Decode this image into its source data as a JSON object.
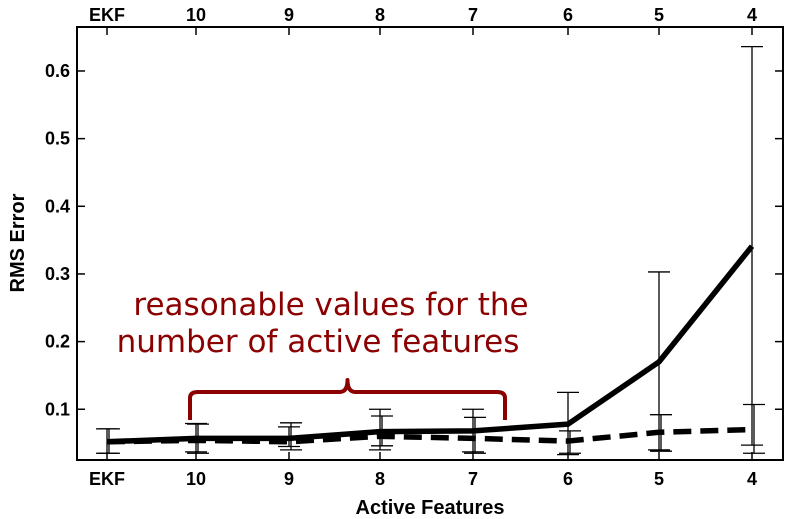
{
  "chart_data": {
    "type": "line",
    "title": "",
    "xlabel": "Active Features",
    "ylabel": "RMS Error",
    "categories": [
      "EKF",
      "10",
      "9",
      "8",
      "7",
      "6",
      "5",
      "4"
    ],
    "top_tick_labels": [
      "EKF",
      "10",
      "9",
      "8",
      "7",
      "6",
      "5",
      "4"
    ],
    "ylim": [
      0.025,
      0.665
    ],
    "yticks": [
      0.1,
      0.2,
      0.3,
      0.4,
      0.5,
      0.6
    ],
    "ytick_labels": [
      "0.1",
      "0.2",
      "0.3",
      "0.4",
      "0.5",
      "0.6"
    ],
    "grid": false,
    "series": [
      {
        "style": "solid",
        "values": [
          0.052,
          0.057,
          0.057,
          0.067,
          0.068,
          0.078,
          0.17,
          0.341
        ],
        "err_low": [
          0.035,
          0.037,
          0.045,
          0.04,
          0.037,
          0.033,
          0.04,
          0.047
        ],
        "err_high": [
          0.071,
          0.079,
          0.074,
          0.1,
          0.1,
          0.125,
          0.303,
          0.636
        ]
      },
      {
        "style": "dashed",
        "values": [
          0.052,
          0.054,
          0.052,
          0.06,
          0.057,
          0.053,
          0.066,
          0.07
        ],
        "err_low": [
          0.035,
          0.035,
          0.04,
          0.046,
          0.035,
          0.035,
          0.038,
          0.035
        ],
        "err_high": [
          0.071,
          0.078,
          0.08,
          0.09,
          0.088,
          0.068,
          0.092,
          0.107
        ]
      }
    ],
    "annotation": {
      "lines": [
        "reasonable values for the",
        "number of active features"
      ],
      "color": "#8b0000",
      "spans": [
        "10",
        "7"
      ]
    }
  }
}
